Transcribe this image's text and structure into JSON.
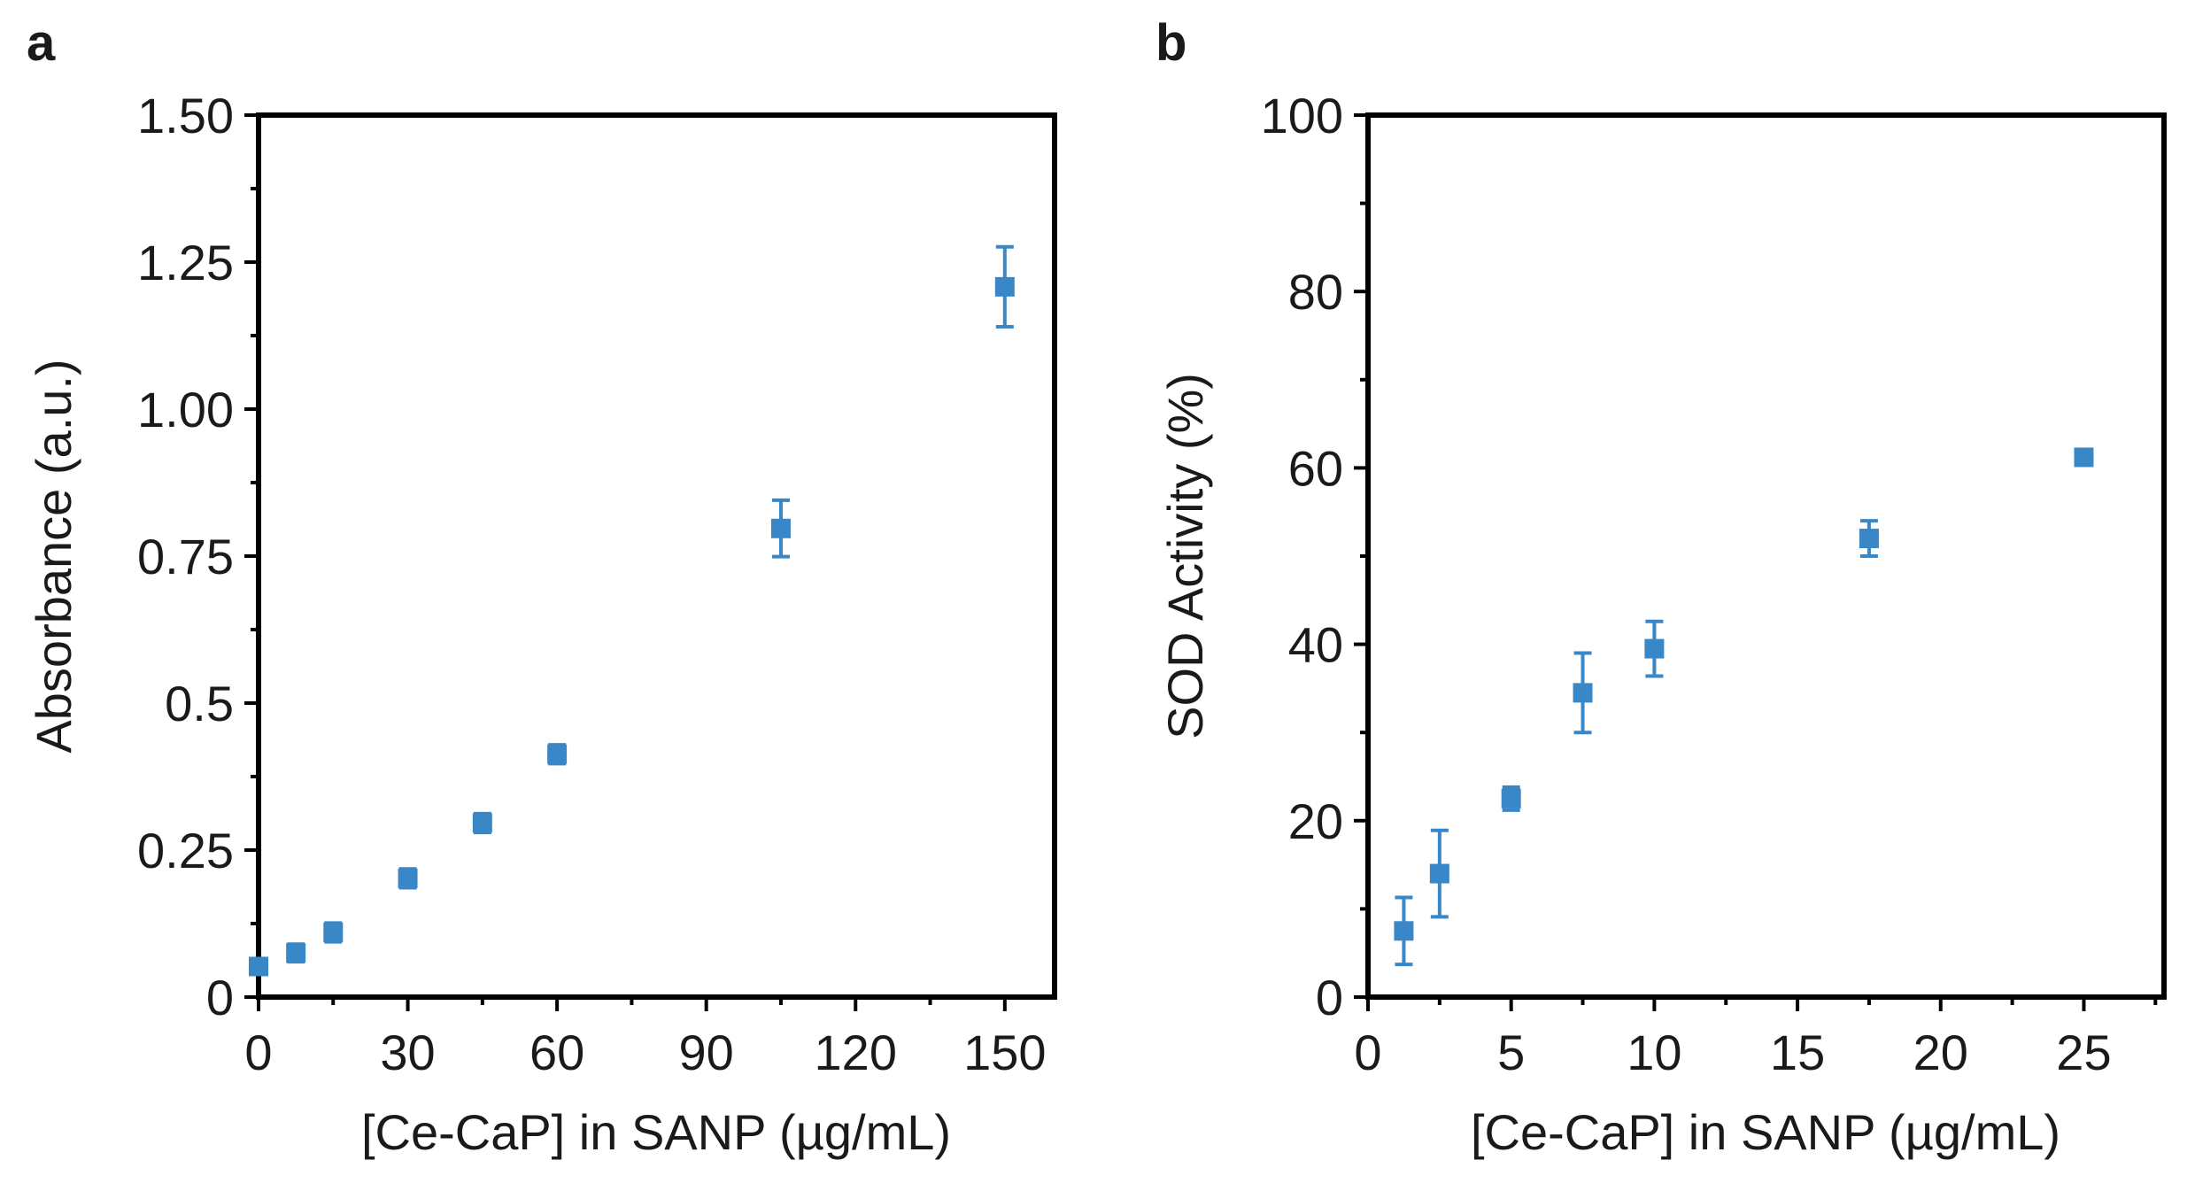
{
  "chart_data": [
    {
      "panel": "a",
      "type": "scatter",
      "xlabel": "[Ce-CaP] in SANP (µg/mL)",
      "ylabel": "Absorbance (a.u.)",
      "xlim": [
        0,
        160
      ],
      "ylim": [
        0,
        1.5
      ],
      "xticks": [
        0,
        30,
        60,
        90,
        120,
        150
      ],
      "xtick_labels": [
        "0",
        "30",
        "60",
        "90",
        "120",
        "150"
      ],
      "yticks": [
        0,
        0.25,
        0.5,
        0.75,
        1.0,
        1.25,
        1.5
      ],
      "ytick_labels": [
        "0",
        "0.25",
        "0.5",
        "0.75",
        "1.00",
        "1.25",
        "1.50"
      ],
      "color": "#3a87c8",
      "series": [
        {
          "name": "Absorbance",
          "x": [
            0,
            7.5,
            15,
            30,
            45,
            60,
            105,
            150
          ],
          "y": [
            0.052,
            0.075,
            0.11,
            0.202,
            0.296,
            0.413,
            0.797,
            1.208
          ],
          "err": [
            0.012,
            0.015,
            0.016,
            0.016,
            0.016,
            0.016,
            0.048,
            0.068
          ]
        }
      ]
    },
    {
      "panel": "b",
      "type": "scatter",
      "xlabel": "[Ce-CaP] in SANP (µg/mL)",
      "ylabel": "SOD Activity (%)",
      "xlim": [
        0,
        27.8
      ],
      "ylim": [
        0,
        100
      ],
      "xticks": [
        0,
        5,
        10,
        15,
        20,
        25
      ],
      "xtick_labels": [
        "0",
        "5",
        "10",
        "15",
        "20",
        "25"
      ],
      "yticks": [
        0,
        20,
        40,
        60,
        80,
        100
      ],
      "ytick_labels": [
        "0",
        "20",
        "40",
        "60",
        "80",
        "100"
      ],
      "color": "#3a87c8",
      "series": [
        {
          "name": "SOD Activity",
          "x": [
            1.25,
            2.5,
            5,
            7.5,
            10,
            17.5,
            25
          ],
          "y": [
            7.5,
            14,
            22.5,
            34.5,
            39.5,
            52,
            61.2
          ],
          "err": [
            3.8,
            4.9,
            1.3,
            4.5,
            3.1,
            2.0,
            0.8
          ]
        }
      ]
    }
  ]
}
